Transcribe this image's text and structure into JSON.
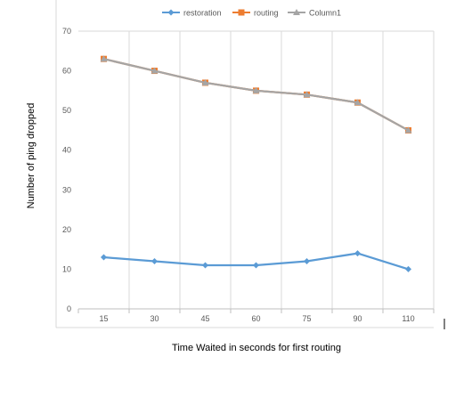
{
  "chart_data": {
    "type": "line",
    "xlabel": "Time Waited in seconds for first routing",
    "ylabel": "Number of ping dropped",
    "categories": [
      "15",
      "30",
      "45",
      "60",
      "75",
      "90",
      "110"
    ],
    "ylim": [
      0,
      70
    ],
    "yticks": [
      0,
      10,
      20,
      30,
      40,
      50,
      60,
      70
    ],
    "grid": "vertical",
    "legend_position": "top",
    "series": [
      {
        "name": "restoration",
        "values": [
          13,
          12,
          11,
          11,
          12,
          14,
          10
        ],
        "color": "#5b9bd5",
        "marker": "diamond"
      },
      {
        "name": "routing",
        "values": [
          63,
          60,
          57,
          55,
          54,
          52,
          45
        ],
        "color": "#ed7d31",
        "marker": "square"
      },
      {
        "name": "Column1",
        "values": [
          63,
          60,
          57,
          55,
          54,
          52,
          45
        ],
        "color": "#a5a5a5",
        "marker": "triangle"
      }
    ]
  }
}
